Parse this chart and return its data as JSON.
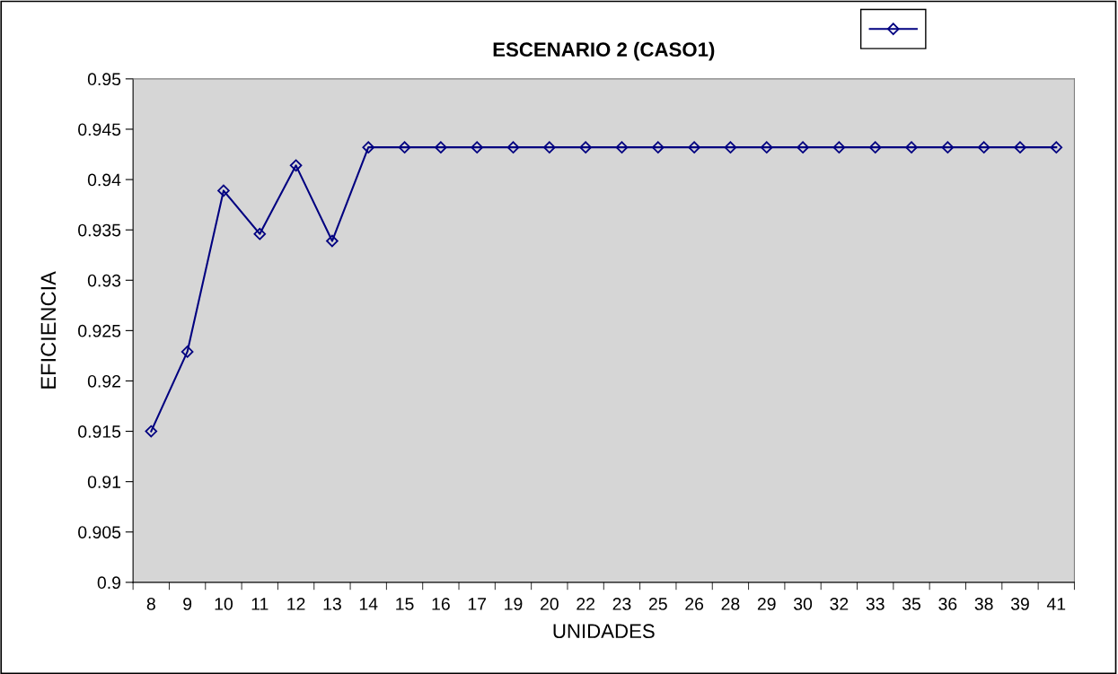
{
  "chart_data": {
    "type": "line",
    "title": "ESCENARIO 2 (CASO1)",
    "xlabel": "UNIDADES",
    "ylabel": "EFICIENCIA",
    "categories": [
      "8",
      "9",
      "10",
      "11",
      "12",
      "13",
      "14",
      "15",
      "16",
      "17",
      "19",
      "20",
      "22",
      "23",
      "25",
      "26",
      "28",
      "29",
      "30",
      "32",
      "33",
      "35",
      "36",
      "38",
      "39",
      "41"
    ],
    "series": [
      {
        "color": "#000080",
        "values": [
          0.915,
          0.9229,
          0.9389,
          0.9346,
          0.9414,
          0.9339,
          0.9432,
          0.9432,
          0.9432,
          0.9432,
          0.9432,
          0.9432,
          0.9432,
          0.9432,
          0.9432,
          0.9432,
          0.9432,
          0.9432,
          0.9432,
          0.9432,
          0.9432,
          0.9432,
          0.9432,
          0.9432,
          0.9432,
          0.9432
        ]
      }
    ],
    "ylim": [
      0.9,
      0.95
    ],
    "yticks": [
      0.9,
      0.905,
      0.91,
      0.915,
      0.92,
      0.925,
      0.93,
      0.935,
      0.94,
      0.945,
      0.95
    ],
    "marker": "diamond",
    "line_style": "solid",
    "grid": false
  }
}
